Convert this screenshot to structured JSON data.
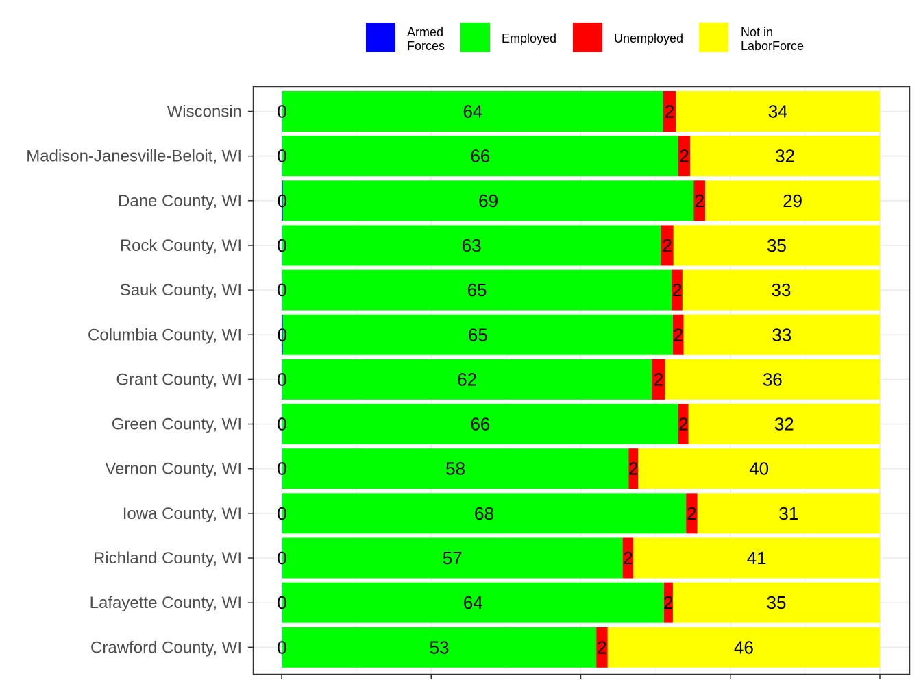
{
  "chart_data": {
    "type": "bar",
    "orientation": "horizontal",
    "stacked": true,
    "percent_scale": true,
    "xlim": [
      0,
      100
    ],
    "grid": true,
    "legend_position": "top",
    "categories": [
      "Wisconsin",
      "Madison-Janesville-Beloit, WI",
      "Dane County, WI",
      "Rock County, WI",
      "Sauk County, WI",
      "Columbia County, WI",
      "Grant County, WI",
      "Green County, WI",
      "Vernon County, WI",
      "Iowa County, WI",
      "Richland County, WI",
      "Lafayette County, WI",
      "Crawford County, WI"
    ],
    "series": [
      {
        "name": "Armed\nForces",
        "color": "#0000ff",
        "values": [
          0.1,
          0.1,
          0.2,
          0.1,
          0.1,
          0.2,
          0.1,
          0.1,
          0.1,
          0.1,
          0.1,
          0.1,
          0.1
        ],
        "labels": [
          "0",
          "0",
          "0",
          "0",
          "0",
          "0",
          "0",
          "0",
          "0",
          "0",
          "0",
          "0",
          "0"
        ]
      },
      {
        "name": "Employed",
        "color": "#00ff00",
        "values": [
          63.7,
          66.2,
          68.7,
          63.3,
          65.1,
          65.2,
          61.8,
          66.2,
          57.9,
          67.5,
          56.9,
          63.8,
          52.5
        ],
        "labels": [
          "64",
          "66",
          "69",
          "63",
          "65",
          "65",
          "62",
          "66",
          "58",
          "68",
          "57",
          "64",
          "53"
        ]
      },
      {
        "name": "Unemployed",
        "color": "#ff0000",
        "values": [
          2.1,
          2.0,
          1.9,
          2.1,
          1.8,
          1.8,
          2.2,
          1.7,
          1.6,
          1.9,
          1.8,
          1.5,
          1.9
        ],
        "labels": [
          "2",
          "2",
          "2",
          "2",
          "2",
          "2",
          "2",
          "2",
          "2",
          "2",
          "2",
          "2",
          "2"
        ]
      },
      {
        "name": "Not in\nLaborForce",
        "color": "#ffff00",
        "values": [
          34.1,
          31.7,
          29.2,
          34.5,
          33.0,
          32.8,
          35.9,
          32.0,
          40.4,
          30.5,
          41.2,
          34.6,
          45.5
        ],
        "labels": [
          "34",
          "32",
          "29",
          "35",
          "33",
          "33",
          "36",
          "32",
          "40",
          "31",
          "41",
          "35",
          "46"
        ]
      }
    ]
  }
}
